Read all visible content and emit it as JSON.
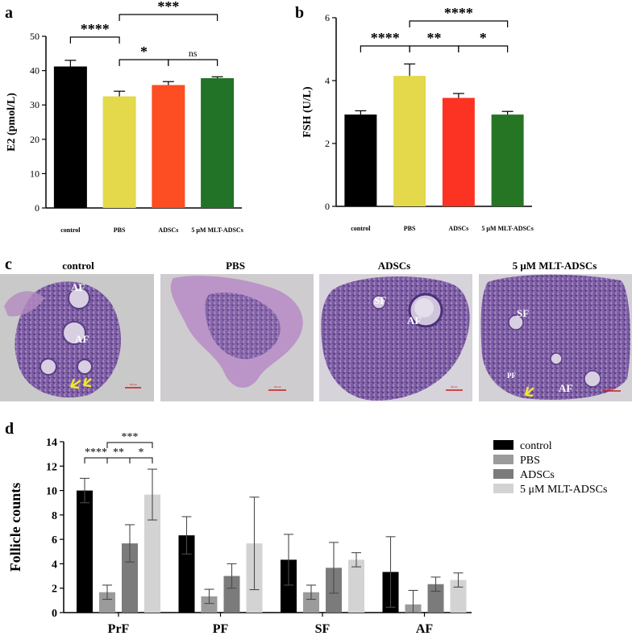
{
  "panels": {
    "a": "a",
    "b": "b",
    "c": "c",
    "d": "d"
  },
  "chart_data": [
    {
      "id": "a",
      "type": "bar",
      "ylabel": "E2 (pmol/L)",
      "categories": [
        "control",
        "PBS",
        "ADSCs",
        "5 μM MLT-ADSCs"
      ],
      "values": [
        41.2,
        32.5,
        35.8,
        37.8
      ],
      "errors": [
        1.8,
        1.5,
        1.0,
        0.4
      ],
      "colors": [
        "#000000",
        "#e3d94a",
        "#fc4d23",
        "#227327"
      ],
      "ylim": [
        0,
        50
      ],
      "yticks": [
        0,
        10,
        20,
        30,
        40,
        50
      ],
      "brackets": [
        {
          "from": 0,
          "to": 1,
          "label": "****"
        },
        {
          "from": 1,
          "to": 2,
          "label": "*"
        },
        {
          "from": 2,
          "to": 3,
          "label": "ns"
        },
        {
          "from": 1,
          "to": 3,
          "label": "***"
        }
      ]
    },
    {
      "id": "b",
      "type": "bar",
      "ylabel": "FSH (U/L)",
      "categories": [
        "control",
        "PBS",
        "ADSCs",
        "5 μM MLT-ADSCs"
      ],
      "values": [
        2.92,
        4.15,
        3.45,
        2.92
      ],
      "errors": [
        0.12,
        0.38,
        0.14,
        0.1
      ],
      "colors": [
        "#000000",
        "#e3d94a",
        "#fc3322",
        "#267524"
      ],
      "ylim": [
        0,
        6
      ],
      "yticks": [
        0,
        2,
        4,
        6
      ],
      "brackets": [
        {
          "from": 0,
          "to": 1,
          "label": "****"
        },
        {
          "from": 1,
          "to": 2,
          "label": "**"
        },
        {
          "from": 2,
          "to": 3,
          "label": "*"
        },
        {
          "from": 1,
          "to": 3,
          "label": "****"
        }
      ]
    },
    {
      "id": "d",
      "type": "bar",
      "ylabel": "Follicle counts",
      "categories": [
        "PrF",
        "PF",
        "SF",
        "AF"
      ],
      "ylim": [
        0,
        14
      ],
      "yticks": [
        0,
        2,
        4,
        6,
        8,
        10,
        12,
        14
      ],
      "series": [
        {
          "name": "control",
          "color": "#000000",
          "values": [
            10.0,
            6.33,
            4.33,
            3.33
          ],
          "errors": [
            1.0,
            1.53,
            2.08,
            2.89
          ]
        },
        {
          "name": "PBS",
          "color": "#9b9b9b",
          "values": [
            1.67,
            1.33,
            1.67,
            0.67
          ],
          "errors": [
            0.58,
            0.58,
            0.58,
            1.15
          ]
        },
        {
          "name": "ADSCs",
          "color": "#7b7b7b",
          "values": [
            5.67,
            3.0,
            3.67,
            2.33
          ],
          "errors": [
            1.53,
            1.0,
            2.08,
            0.58
          ]
        },
        {
          "name": "5 μM MLT-ADSCs",
          "color": "#d3d3d3",
          "values": [
            9.67,
            5.67,
            4.33,
            2.67
          ],
          "errors": [
            2.08,
            3.79,
            0.58,
            0.58
          ]
        }
      ],
      "brackets": [
        {
          "from": 0,
          "to": 1,
          "label": "****"
        },
        {
          "from": 1,
          "to": 2,
          "label": "**"
        },
        {
          "from": 2,
          "to": 3,
          "label": "*"
        },
        {
          "from": 1,
          "to": 3,
          "label": "***"
        }
      ]
    }
  ],
  "micrographs": [
    {
      "title": "control",
      "labels": [
        "AF",
        "AF"
      ],
      "scale": "100 μm"
    },
    {
      "title": "PBS",
      "labels": [],
      "scale": "100 μm"
    },
    {
      "title": "ADSCs",
      "labels": [
        "SF",
        "AF"
      ],
      "scale": "100 μm"
    },
    {
      "title": "5 μM MLT-ADSCs",
      "labels": [
        "SF",
        "PF",
        "AF"
      ],
      "scale": "100 μm"
    }
  ]
}
